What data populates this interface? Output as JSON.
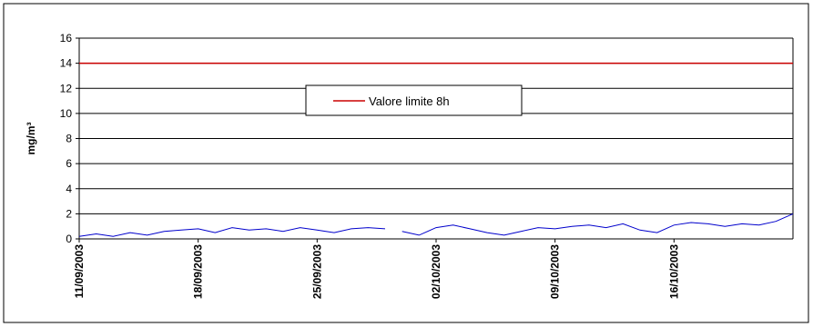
{
  "chart_data": {
    "type": "line",
    "title": "",
    "xlabel": "",
    "ylabel": "mg/m³",
    "ylim": [
      0,
      16
    ],
    "yticks": [
      0,
      2,
      4,
      6,
      8,
      10,
      12,
      14,
      16
    ],
    "xlim": [
      "2003-09-11",
      "2003-10-23"
    ],
    "xtick_labels": [
      "11/09/2003",
      "18/09/2003",
      "25/09/2003",
      "02/10/2003",
      "09/10/2003",
      "16/10/2003"
    ],
    "xtick_dates": [
      "2003-09-11",
      "2003-09-18",
      "2003-09-25",
      "2003-10-02",
      "2003-10-09",
      "2003-10-16"
    ],
    "grid": "horizontal",
    "legend": {
      "placement": "center",
      "entries": [
        "Valore limite 8h"
      ]
    },
    "series": [
      {
        "name": "Valore limite 8h",
        "color": "#cc0000",
        "x": [
          "2003-09-11",
          "2003-10-23"
        ],
        "values": [
          14,
          14
        ]
      },
      {
        "color": "#0000cc",
        "x": [
          "2003-09-11",
          "2003-09-12",
          "2003-09-13",
          "2003-09-14",
          "2003-09-15",
          "2003-09-16",
          "2003-09-17",
          "2003-09-18",
          "2003-09-19",
          "2003-09-20",
          "2003-09-21",
          "2003-09-22",
          "2003-09-23",
          "2003-09-24",
          "2003-09-25",
          "2003-09-26",
          "2003-09-27",
          "2003-09-28",
          "2003-09-29",
          null,
          "2003-09-30",
          "2003-10-01",
          "2003-10-02",
          "2003-10-03",
          "2003-10-04",
          "2003-10-05",
          "2003-10-06",
          "2003-10-07",
          "2003-10-08",
          "2003-10-09",
          "2003-10-10",
          "2003-10-11",
          "2003-10-12",
          "2003-10-13",
          "2003-10-14",
          "2003-10-15",
          "2003-10-16",
          "2003-10-17",
          "2003-10-18",
          "2003-10-19",
          "2003-10-20",
          "2003-10-21",
          "2003-10-22",
          "2003-10-23"
        ],
        "values": [
          0.2,
          0.4,
          0.2,
          0.5,
          0.3,
          0.6,
          0.7,
          0.8,
          0.5,
          0.9,
          0.7,
          0.8,
          0.6,
          0.9,
          0.7,
          0.5,
          0.8,
          0.9,
          0.8,
          null,
          0.6,
          0.3,
          0.9,
          1.1,
          0.8,
          0.5,
          0.3,
          0.6,
          0.9,
          0.8,
          1.0,
          1.1,
          0.9,
          1.2,
          0.7,
          0.5,
          1.1,
          1.3,
          1.2,
          1.0,
          1.2,
          1.1,
          1.4,
          2.0
        ]
      }
    ]
  }
}
